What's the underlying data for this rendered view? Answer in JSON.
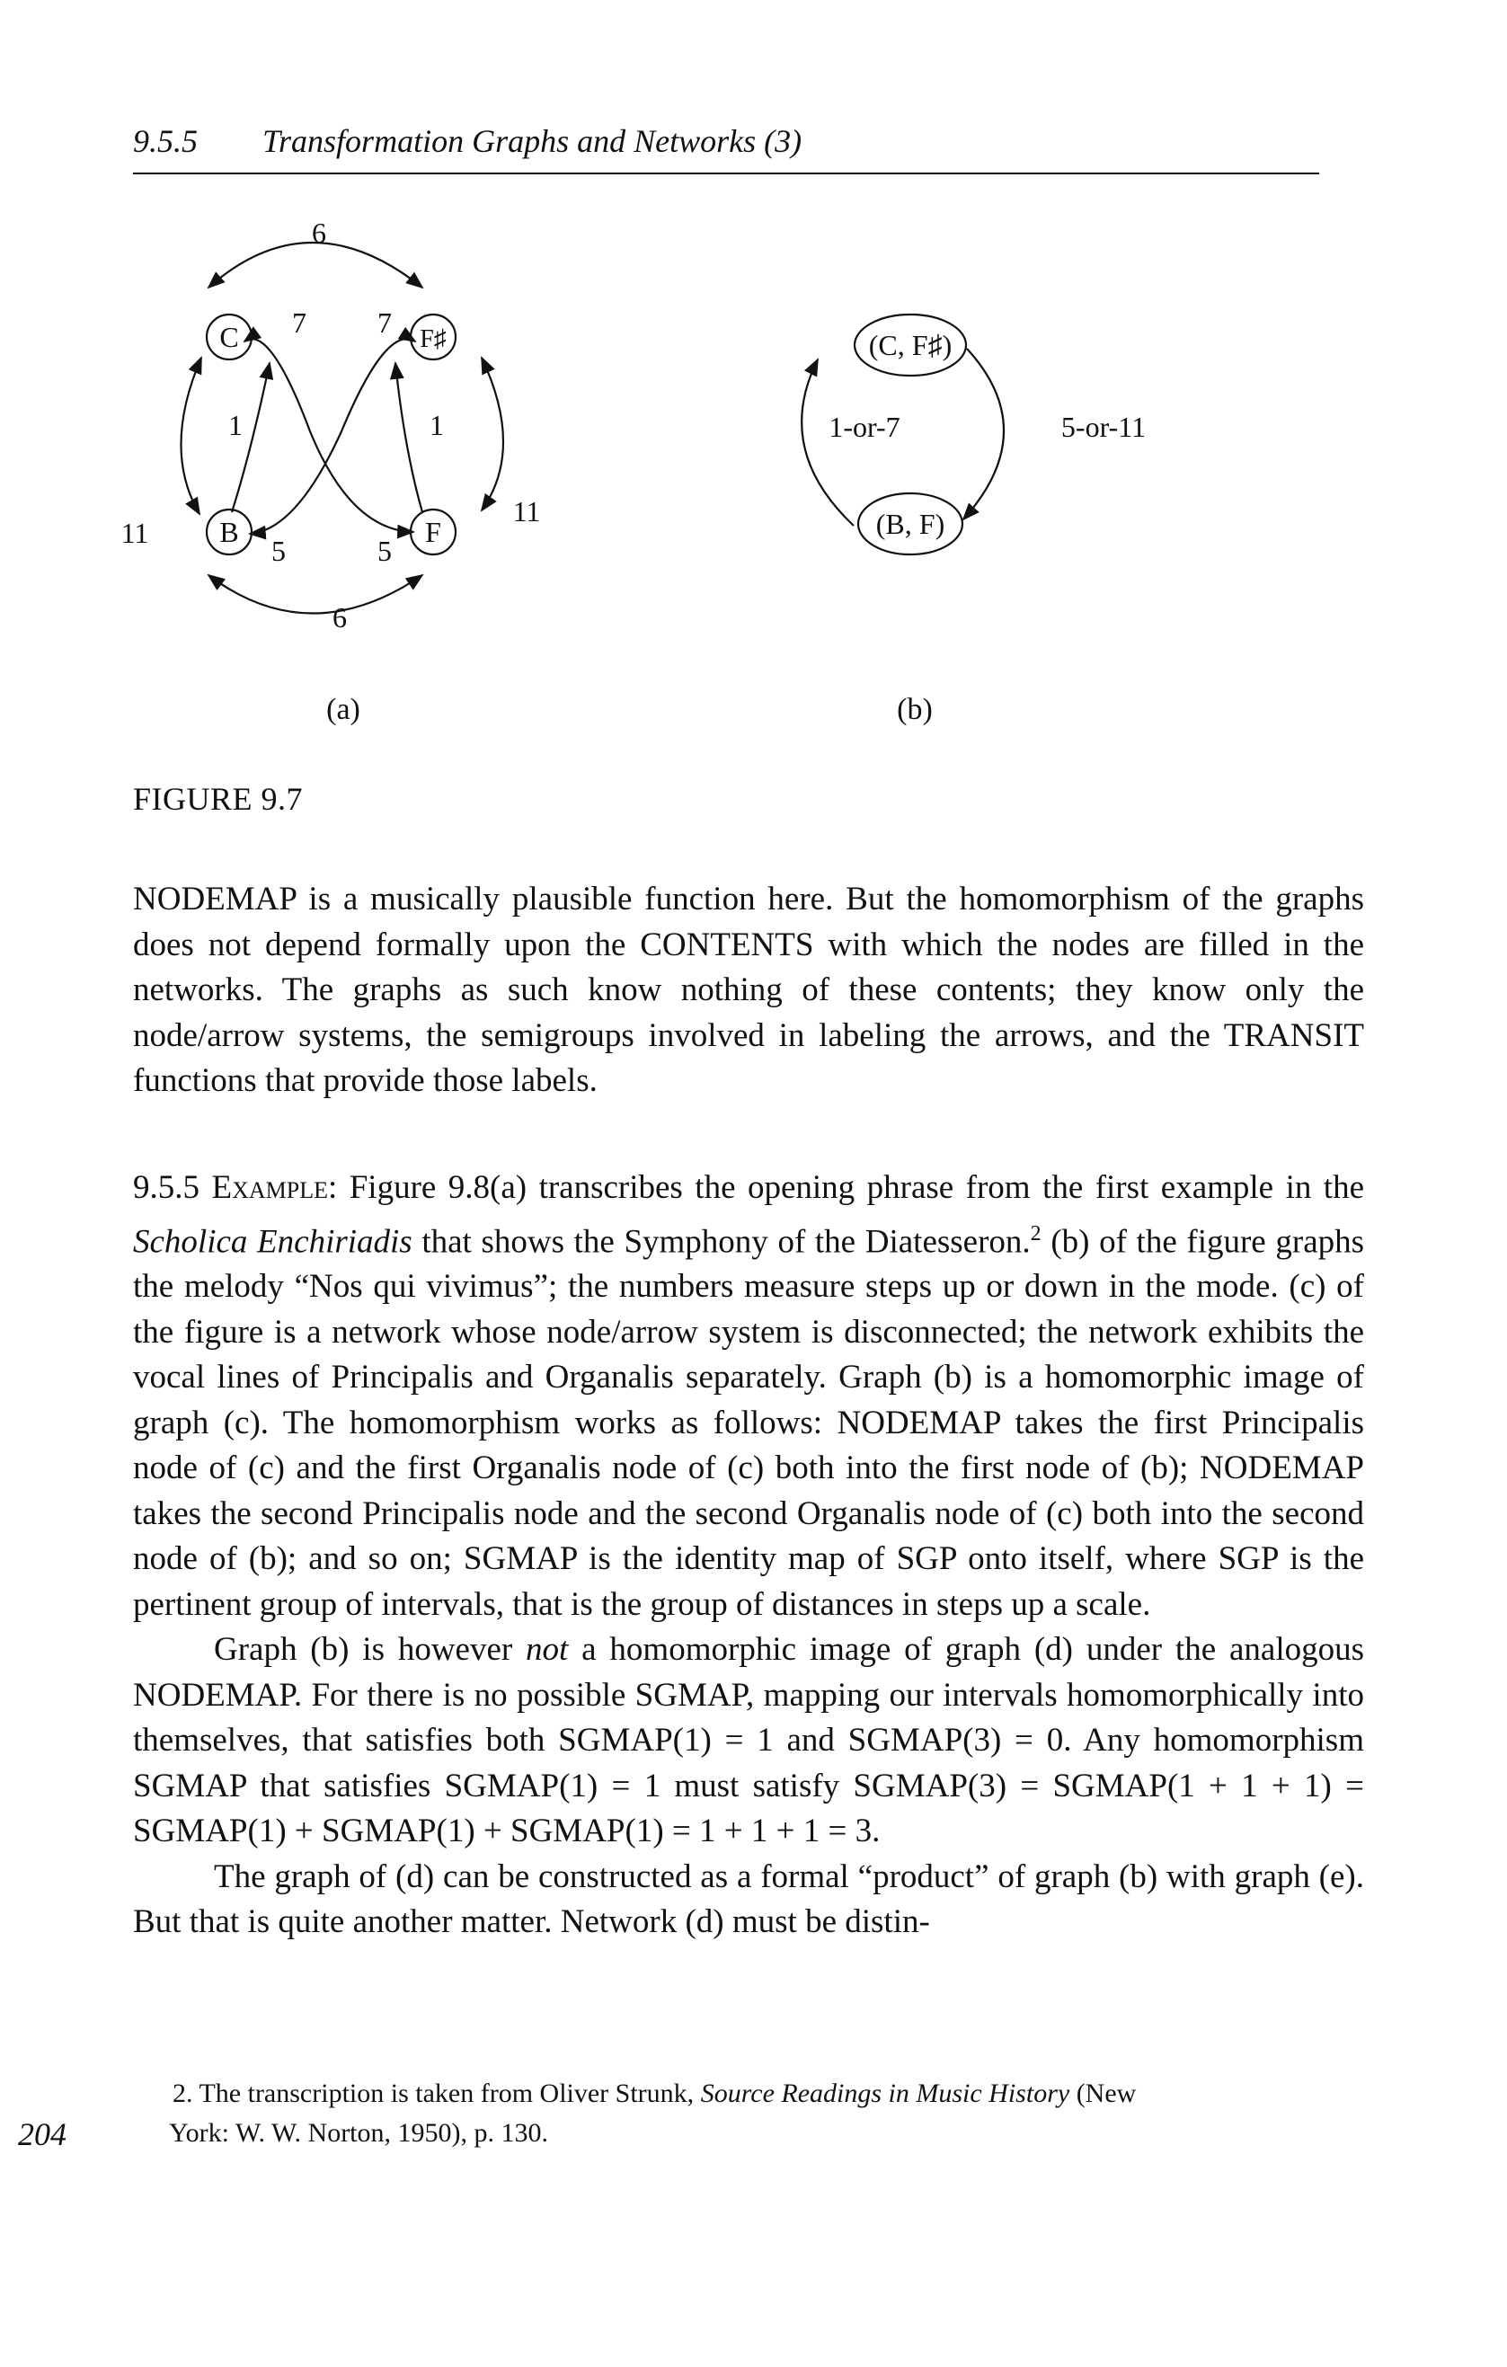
{
  "header": {
    "section_number": "9.5.5",
    "running_title": "Transformation Graphs and Networks (3)"
  },
  "figure": {
    "caption": "FIGURE 9.7",
    "graph_a": {
      "label": "(a)",
      "nodes": {
        "c": "C",
        "fsharp": "F♯",
        "b": "B",
        "f": "F"
      },
      "edges": {
        "top": "6",
        "bottom": "6",
        "left": "11",
        "right": "11",
        "c_to_f": "7",
        "fsharp_to_b": "7",
        "b_to_c": "1",
        "f_to_fsharp": "1",
        "c_to_f_lower": "5",
        "fsharp_to_b_lower": "5"
      }
    },
    "graph_b": {
      "label": "(b)",
      "nodes": {
        "top": "(C, F♯)",
        "bottom": "(B, F)"
      },
      "edges": {
        "left": "1-or-7",
        "right": "5-or-11"
      }
    }
  },
  "paragraphs": {
    "p1": "NODEMAP is a musically plausible function here. But the homomorphism of the graphs does not depend formally upon the CONTENTS with which the nodes are filled in the networks. The graphs as such know nothing of these contents; they know only the node/arrow systems, the semigroups involved in labeling the arrows, and the TRANSIT functions that provide those labels.",
    "p2": {
      "number": "9.5.5",
      "label": "Example:",
      "t1": "Figure 9.8(a) transcribes the opening phrase from the first example in the",
      "title": "Scholica Enchiriadis",
      "t2": "that shows the Symphony of the Diatesseron.",
      "note_ref": "2",
      "t3": "(b) of the figure graphs the melody “Nos qui vivimus”; the numbers measure steps up or down in the mode. (c) of the figure is a network whose node/arrow system is disconnected; the network exhibits the vocal lines of Principalis and Organalis separately. Graph (b) is a homomorphic image of graph (c). The homomorphism works as follows: NODEMAP takes the first Principalis node of (c) and the first Organalis node of (c) both into the first node of (b); NODEMAP takes the second Principalis node and the second Organalis node of (c) both into the second node of (b); and so on; SGMAP is the identity map of SGP onto itself, where SGP is the pertinent group of intervals, that is the group of distances in steps up a scale."
    },
    "p3": {
      "t1": "Graph (b) is however",
      "emph": "not",
      "t2": "a homomorphic image of graph (d) under the analogous NODEMAP. For there is no possible SGMAP, mapping our intervals homomorphically into themselves, that satisfies both SGMAP(1) = 1 and SGMAP(3) = 0. Any homomorphism SGMAP that satisfies SGMAP(1) = 1 must satisfy SGMAP(3) = SGMAP(1 + 1 + 1) = SGMAP(1) + SGMAP(1) + SGMAP(1) = 1 + 1 + 1 = 3."
    },
    "p4": "The graph of (d) can be constructed as a formal “product” of graph (b) with graph (e). But that is quite another matter. Network (d) must be distin-"
  },
  "footnote": {
    "number": "2.",
    "t1": "The transcription is taken from Oliver Strunk,",
    "title": "Source Readings in Music History",
    "t2": "(New",
    "t3": "York: W. W. Norton, 1950), p. 130."
  },
  "page_number": "204"
}
